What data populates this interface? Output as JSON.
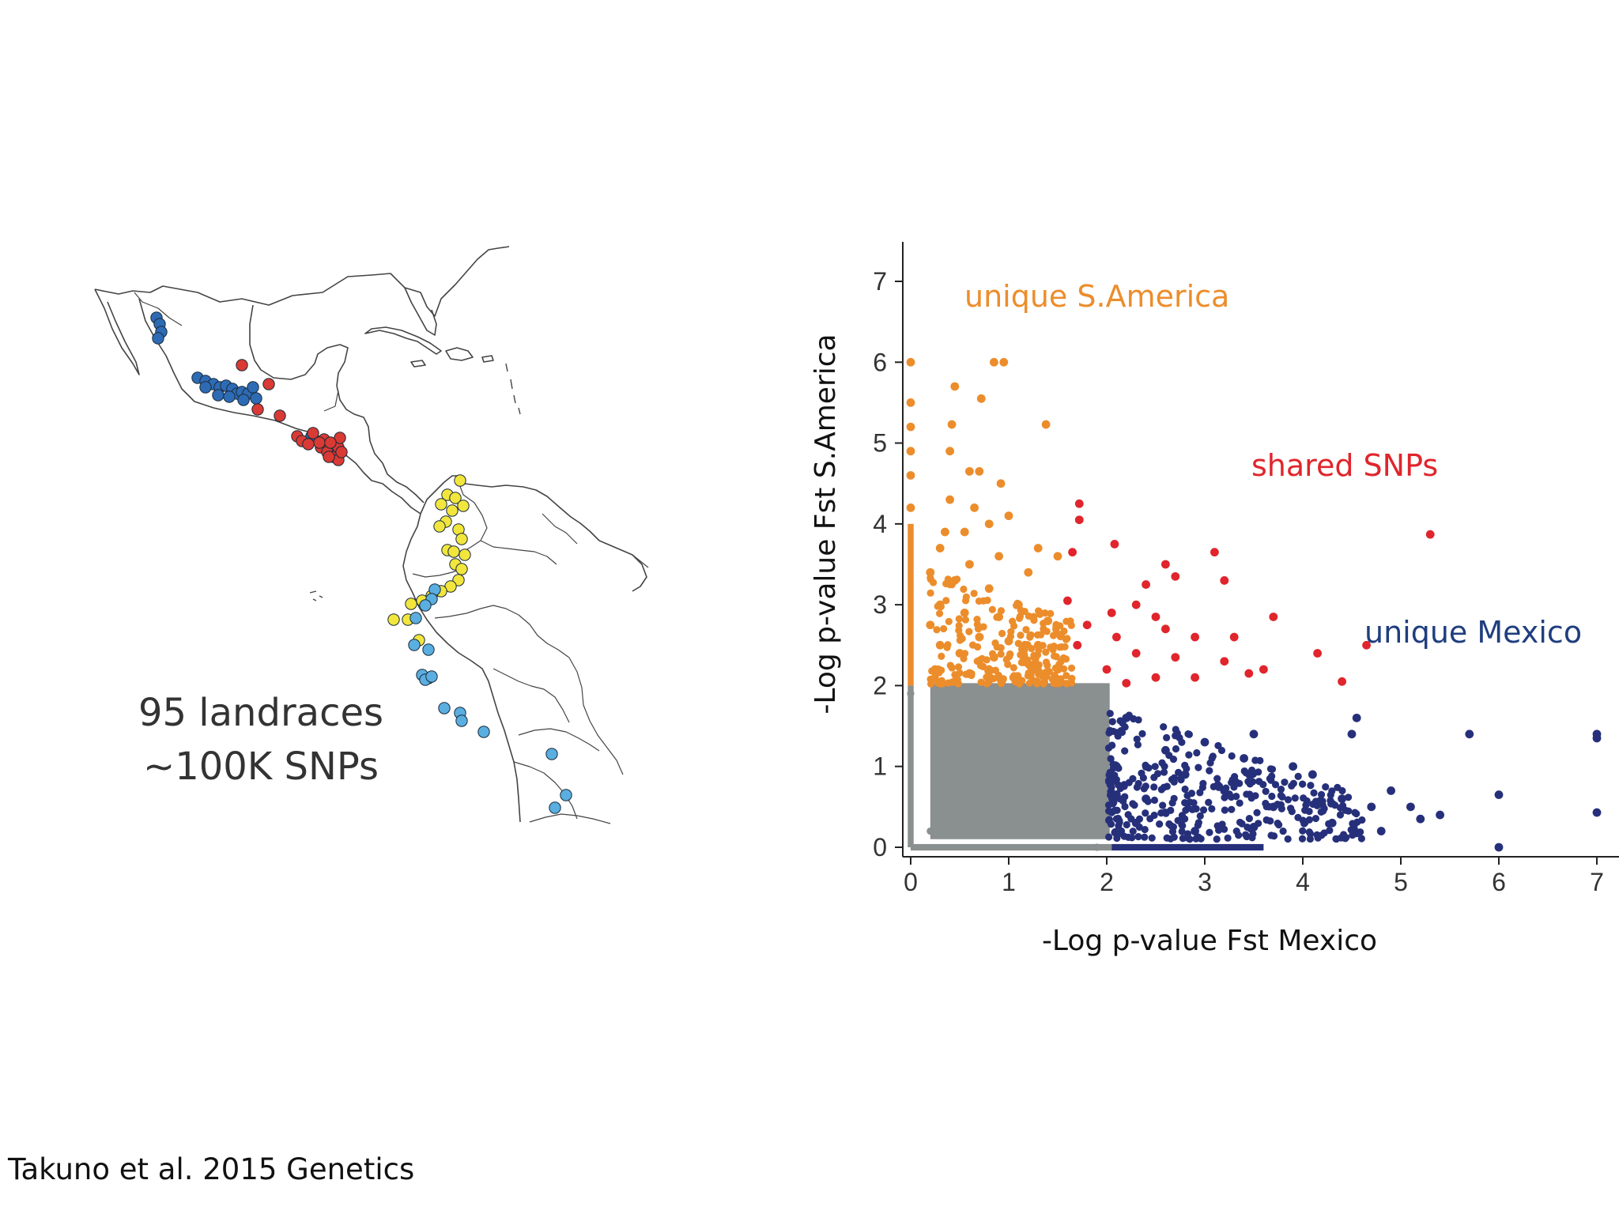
{
  "slide": {
    "caption_line1": "95 landraces",
    "caption_line2": "~100K SNPs",
    "citation": "Takuno et al. 2015 Genetics"
  },
  "map": {
    "samples": {
      "mexico_highland": {
        "color": "#2e6bb5",
        "count": 20
      },
      "mexico_lowland": {
        "color": "#d93a33",
        "count": 19
      },
      "sa_andean_north": {
        "color": "#f2e63d",
        "count": 24
      },
      "sa_andean_south": {
        "color": "#5aaee0",
        "count": 16
      }
    }
  },
  "chart_data": {
    "type": "scatter",
    "xlabel": "-Log p-value Fst Mexico",
    "ylabel": "-Log p-value Fst S.America",
    "xlim": [
      -0.1,
      7.5
    ],
    "ylim": [
      -0.1,
      7.5
    ],
    "xticks": [
      0,
      1,
      2,
      3,
      4,
      5,
      6,
      7
    ],
    "yticks": [
      0,
      1,
      2,
      3,
      4,
      5,
      6,
      7
    ],
    "grid": false,
    "annotations": [
      {
        "text": "unique S.America",
        "color": "#ec8d2c"
      },
      {
        "text": "shared SNPs",
        "color": "#e0252c"
      },
      {
        "text": "unique Mexico",
        "color": "#1f3e7e"
      }
    ],
    "series": [
      {
        "color": "#8a8f8f",
        "region": "x < 2 and y < 2 (dense, not significant)",
        "points": [
          [
            0.2,
            0.2
          ],
          [
            1.0,
            1.0
          ],
          [
            1.9,
            1.9
          ],
          [
            0.5,
            1.5
          ],
          [
            1.5,
            0.5
          ],
          [
            0,
            1.9
          ],
          [
            1.9,
            0
          ]
        ]
      },
      {
        "color": "#ec8d2c",
        "points": [
          [
            0,
            6.0
          ],
          [
            0.95,
            6.0
          ],
          [
            0.85,
            6.0
          ],
          [
            0.45,
            5.7
          ],
          [
            0.72,
            5.55
          ],
          [
            0,
            5.5
          ],
          [
            0,
            5.2
          ],
          [
            1.38,
            5.23
          ],
          [
            0.42,
            5.23
          ],
          [
            0.4,
            4.9
          ],
          [
            0,
            4.9
          ],
          [
            0.6,
            4.65
          ],
          [
            0.7,
            4.65
          ],
          [
            0,
            4.6
          ],
          [
            0.92,
            4.5
          ],
          [
            0,
            4.2
          ],
          [
            0.4,
            4.3
          ],
          [
            0.65,
            4.2
          ],
          [
            1.0,
            4.1
          ],
          [
            0.8,
            4.0
          ],
          [
            0.35,
            3.9
          ],
          [
            0.55,
            3.9
          ],
          [
            0.3,
            3.7
          ],
          [
            1.3,
            3.7
          ],
          [
            0.9,
            3.6
          ],
          [
            0.6,
            3.5
          ],
          [
            1.5,
            3.6
          ],
          [
            0.2,
            3.4
          ],
          [
            1.2,
            3.4
          ],
          [
            0.45,
            3.3
          ],
          [
            0.8,
            3.2
          ],
          [
            0.3,
            3.0
          ],
          [
            1.1,
            3.0
          ],
          [
            0.55,
            2.9
          ],
          [
            0.9,
            2.85
          ],
          [
            0.2,
            2.75
          ],
          [
            1.4,
            2.8
          ],
          [
            0.7,
            2.6
          ],
          [
            1.0,
            2.55
          ],
          [
            0.3,
            2.5
          ],
          [
            1.3,
            2.5
          ],
          [
            0.5,
            2.4
          ],
          [
            0.85,
            2.35
          ],
          [
            1.15,
            2.3
          ],
          [
            0.25,
            2.2
          ],
          [
            1.5,
            2.2
          ],
          [
            0.6,
            2.15
          ],
          [
            1.05,
            2.1
          ],
          [
            1.35,
            2.12
          ]
        ]
      },
      {
        "color": "#e0252c",
        "points": [
          [
            5.3,
            3.87
          ],
          [
            1.72,
            4.25
          ],
          [
            1.72,
            4.05
          ],
          [
            2.08,
            3.75
          ],
          [
            1.65,
            3.65
          ],
          [
            2.6,
            3.5
          ],
          [
            3.1,
            3.65
          ],
          [
            2.7,
            3.35
          ],
          [
            3.2,
            3.3
          ],
          [
            2.4,
            3.25
          ],
          [
            1.6,
            3.05
          ],
          [
            2.3,
            3.0
          ],
          [
            2.05,
            2.9
          ],
          [
            2.5,
            2.85
          ],
          [
            1.8,
            2.75
          ],
          [
            2.6,
            2.7
          ],
          [
            3.7,
            2.85
          ],
          [
            2.1,
            2.6
          ],
          [
            2.9,
            2.6
          ],
          [
            1.7,
            2.5
          ],
          [
            3.3,
            2.6
          ],
          [
            4.65,
            2.5
          ],
          [
            2.3,
            2.4
          ],
          [
            2.7,
            2.35
          ],
          [
            4.15,
            2.4
          ],
          [
            3.2,
            2.3
          ],
          [
            2.0,
            2.2
          ],
          [
            2.5,
            2.1
          ],
          [
            3.6,
            2.2
          ],
          [
            2.9,
            2.1
          ],
          [
            4.4,
            2.05
          ],
          [
            2.2,
            2.03
          ],
          [
            3.45,
            2.15
          ]
        ]
      },
      {
        "color": "#26307a",
        "points": [
          [
            7.0,
            1.4
          ],
          [
            7.0,
            1.35
          ],
          [
            5.7,
            1.4
          ],
          [
            7.0,
            0.43
          ],
          [
            6.0,
            0.65
          ],
          [
            6.0,
            0.0
          ],
          [
            5.4,
            0.4
          ],
          [
            4.5,
            1.4
          ],
          [
            4.55,
            1.6
          ],
          [
            3.5,
            1.4
          ],
          [
            3.0,
            1.3
          ],
          [
            2.2,
            1.6
          ],
          [
            2.6,
            1.2
          ],
          [
            3.4,
            1.1
          ],
          [
            3.9,
            1.0
          ],
          [
            4.1,
            0.9
          ],
          [
            4.9,
            0.7
          ],
          [
            4.7,
            0.5
          ],
          [
            4.4,
            0.6
          ],
          [
            5.1,
            0.5
          ],
          [
            5.2,
            0.35
          ],
          [
            3.2,
            0.7
          ],
          [
            2.8,
            0.9
          ],
          [
            2.4,
            0.6
          ],
          [
            2.1,
            1.0
          ],
          [
            3.7,
            0.5
          ],
          [
            4.3,
            0.3
          ],
          [
            2.3,
            0.3
          ],
          [
            2.9,
            0.2
          ],
          [
            3.5,
            0.25
          ],
          [
            4.8,
            0.2
          ]
        ]
      }
    ]
  }
}
